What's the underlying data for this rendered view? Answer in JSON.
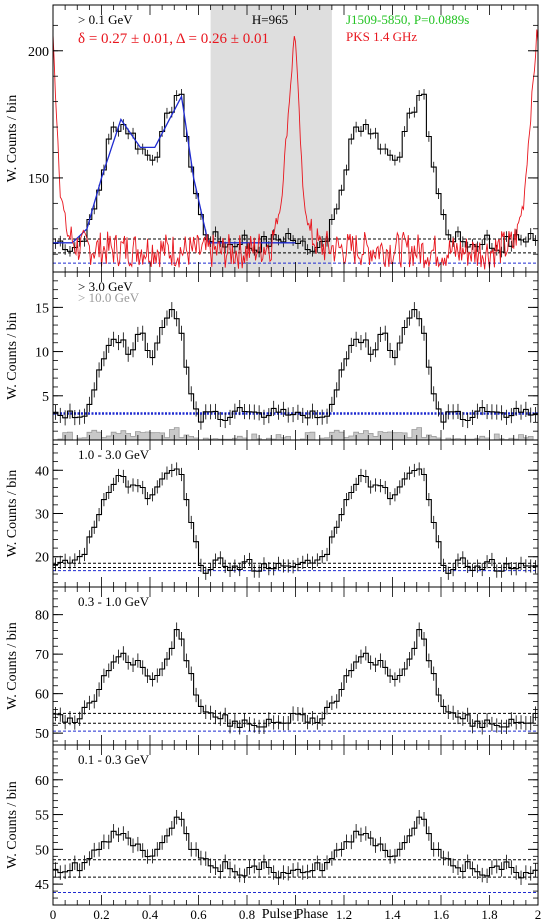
{
  "chart_data": [
    {
      "type": "line",
      "panel_label": "> 0.1 GeV",
      "formula": "δ = 0.27 ± 0.01, Δ = 0.26 ± 0.01",
      "htest": "H=965",
      "pulsar": "J1509-5850, P=0.0889s",
      "radio": "PKS 1.4 GHz",
      "ylabel": "W. Counts / bin",
      "ylim": [
        113,
        218
      ],
      "yticks": [
        150,
        200
      ],
      "offpulse_shade": [
        0.65,
        1.15
      ],
      "baselines": [
        {
          "value": 126,
          "color": "#000000"
        },
        {
          "value": 120.5,
          "color": "#000000"
        },
        {
          "value": 116.5,
          "color": "#1f2bd0"
        }
      ],
      "series": [
        {
          "name": "> 0.1 GeV",
          "color": "#000000",
          "x": [
            0.0,
            0.04,
            0.08,
            0.12,
            0.16,
            0.2,
            0.24,
            0.28,
            0.32,
            0.36,
            0.4,
            0.44,
            0.48,
            0.52,
            0.54,
            0.58,
            0.62,
            0.66,
            0.7,
            0.74,
            0.78,
            0.82,
            0.86,
            0.9,
            0.94,
            0.98
          ],
          "values": [
            124,
            125,
            122,
            126,
            133,
            150,
            168,
            172,
            168,
            162,
            158,
            162,
            176,
            185,
            175,
            148,
            130,
            126,
            125,
            123,
            127,
            122,
            124,
            125,
            126,
            128
          ]
        },
        {
          "name": "fit",
          "color": "#1f2bd0",
          "x": [
            0.0,
            0.08,
            0.14,
            0.2,
            0.28,
            0.36,
            0.42,
            0.48,
            0.53,
            0.58,
            0.64,
            1.0
          ],
          "values": [
            124.5,
            124.5,
            130,
            150,
            173,
            162,
            162,
            173,
            182,
            150,
            124.5,
            124.5
          ]
        },
        {
          "name": "PKS 1.4 GHz",
          "color": "#e8161e",
          "x": [
            0.0,
            0.03,
            0.06,
            0.1,
            0.2,
            0.4,
            0.6,
            0.8,
            0.9,
            0.94,
            0.97,
            1.0,
            1.03,
            1.06,
            1.1,
            1.2
          ],
          "values": [
            205,
            145,
            128,
            123,
            122,
            122,
            121,
            121,
            124,
            140,
            175,
            212,
            175,
            140,
            124,
            122
          ]
        }
      ]
    },
    {
      "type": "line",
      "panel_label": "> 3.0 GeV",
      "panel_label_2": "> 10.0 GeV",
      "ylabel": "W. Counts / bin",
      "ylim": [
        0,
        19
      ],
      "yticks": [
        5,
        10,
        15
      ],
      "baselines": [
        {
          "value": 3.0,
          "color": "#1f2bd0"
        }
      ],
      "series": [
        {
          "name": "> 3.0 GeV",
          "color": "#000000",
          "x": [
            0.0,
            0.04,
            0.08,
            0.12,
            0.16,
            0.2,
            0.24,
            0.28,
            0.32,
            0.36,
            0.4,
            0.44,
            0.48,
            0.52,
            0.56,
            0.6,
            0.64,
            0.68,
            0.72,
            0.76,
            0.8,
            0.84,
            0.88,
            0.92,
            0.96
          ],
          "values": [
            3,
            2.5,
            3,
            3,
            4,
            9,
            12,
            11,
            10,
            13,
            9,
            12,
            15,
            14,
            6,
            2,
            3,
            3,
            2.5,
            3.5,
            3,
            2.5,
            3,
            3.5,
            3
          ]
        },
        {
          "name": "> 10.0 GeV",
          "color": "#9a9a9a",
          "x": [
            0.0,
            0.1,
            0.2,
            0.3,
            0.4,
            0.5,
            0.6,
            0.7,
            0.8,
            0.9
          ],
          "values": [
            0.3,
            0.4,
            0.6,
            0.7,
            0.5,
            0.9,
            0.3,
            0.5,
            0.4,
            0.6
          ]
        }
      ]
    },
    {
      "type": "line",
      "panel_label": "1.0 - 3.0 GeV",
      "ylabel": "W. Counts / bin",
      "ylim": [
        13,
        47
      ],
      "yticks": [
        20,
        30,
        40
      ],
      "baselines": [
        {
          "value": 18.5,
          "color": "#000000"
        },
        {
          "value": 17.5,
          "color": "#000000"
        },
        {
          "value": 16.8,
          "color": "#1f2bd0"
        }
      ],
      "series": [
        {
          "name": "1.0 - 3.0 GeV",
          "color": "#000000",
          "x": [
            0.0,
            0.04,
            0.08,
            0.12,
            0.16,
            0.2,
            0.24,
            0.28,
            0.32,
            0.36,
            0.4,
            0.44,
            0.48,
            0.52,
            0.56,
            0.6,
            0.64,
            0.68,
            0.72,
            0.76,
            0.8,
            0.84,
            0.88,
            0.92,
            0.96
          ],
          "values": [
            18,
            18,
            19,
            20,
            25,
            32,
            37,
            39,
            36,
            36,
            33,
            37,
            39,
            41,
            30,
            20,
            16,
            19,
            18,
            17,
            19,
            17,
            18,
            18,
            17
          ]
        }
      ]
    },
    {
      "type": "line",
      "panel_label": "0.3 - 1.0 GeV",
      "ylabel": "W. Counts / bin",
      "ylim": [
        47,
        87
      ],
      "yticks": [
        50,
        60,
        70,
        80
      ],
      "baselines": [
        {
          "value": 55,
          "color": "#000000"
        },
        {
          "value": 52.5,
          "color": "#000000"
        },
        {
          "value": 50.5,
          "color": "#1f2bd0"
        }
      ],
      "series": [
        {
          "name": "0.3 - 1.0 GeV",
          "color": "#000000",
          "x": [
            0.0,
            0.04,
            0.08,
            0.12,
            0.16,
            0.2,
            0.24,
            0.28,
            0.32,
            0.36,
            0.4,
            0.44,
            0.48,
            0.52,
            0.56,
            0.6,
            0.64,
            0.68,
            0.72,
            0.76,
            0.8,
            0.84,
            0.88,
            0.92,
            0.96
          ],
          "values": [
            55,
            54,
            53,
            55,
            58,
            63,
            68,
            70,
            67,
            68,
            64,
            66,
            70,
            78,
            66,
            58,
            54,
            55,
            53,
            52,
            54,
            51,
            52,
            54,
            52
          ]
        }
      ]
    },
    {
      "type": "line",
      "panel_label": "0.1 - 0.3 GeV",
      "ylabel": "W. Counts / bin",
      "ylim": [
        42,
        65
      ],
      "yticks": [
        45,
        50,
        55,
        60
      ],
      "baselines": [
        {
          "value": 48.5,
          "color": "#000000"
        },
        {
          "value": 46,
          "color": "#000000"
        },
        {
          "value": 43.8,
          "color": "#1f2bd0"
        }
      ],
      "series": [
        {
          "name": "0.1 - 0.3 GeV",
          "color": "#000000",
          "x": [
            0.0,
            0.04,
            0.08,
            0.12,
            0.16,
            0.2,
            0.24,
            0.28,
            0.32,
            0.36,
            0.4,
            0.44,
            0.48,
            0.52,
            0.56,
            0.6,
            0.64,
            0.68,
            0.72,
            0.76,
            0.8,
            0.84,
            0.88,
            0.92,
            0.96
          ],
          "values": [
            47,
            46,
            48,
            47,
            49,
            50,
            52,
            53,
            51,
            50,
            49,
            51,
            52,
            55,
            51,
            49,
            48,
            47,
            48,
            46,
            47,
            47,
            48,
            46,
            47
          ]
        }
      ]
    }
  ],
  "xaxis": {
    "label": "Pulse Phase",
    "xlim": [
      0,
      2
    ],
    "ticks": [
      "0",
      "0.2",
      "0.4",
      "0.6",
      "0.8",
      "1",
      "1.2",
      "1.4",
      "1.6",
      "1.8",
      "2"
    ]
  },
  "colors": {
    "data": "#000000",
    "fit": "#1f2bd0",
    "radio": "#e8161e",
    "pulsar_text": "#22c322",
    "shade": "#dedede",
    "high_energy": "#9a9a9a"
  }
}
